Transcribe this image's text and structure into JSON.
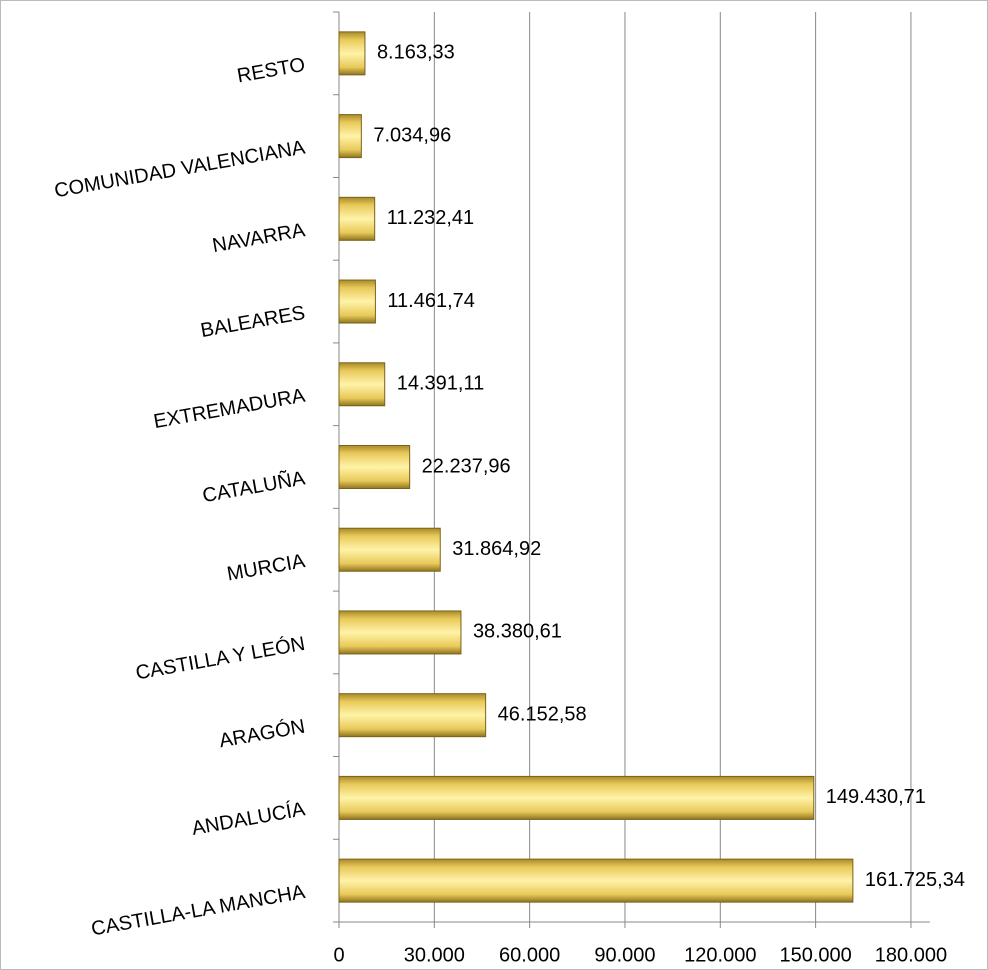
{
  "chart_data": {
    "type": "bar",
    "orientation": "horizontal",
    "categories": [
      "RESTO",
      "COMUNIDAD VALENCIANA",
      "NAVARRA",
      "BALEARES",
      "EXTREMADURA",
      "CATALUÑA",
      "MURCIA",
      "CASTILLA Y LEÓN",
      "ARAGÓN",
      "ANDALUCÍA",
      "CASTILLA-LA MANCHA"
    ],
    "values": [
      8163.33,
      7034.96,
      11232.41,
      11461.74,
      14391.11,
      22237.96,
      31864.92,
      38380.61,
      46152.58,
      149430.71,
      161725.34
    ],
    "value_labels": [
      "8.163,33",
      "7.034,96",
      "11.232,41",
      "11.461,74",
      "14.391,11",
      "22.237,96",
      "31.864,92",
      "38.380,61",
      "46.152,58",
      "149.430,71",
      "161.725,34"
    ],
    "color": "#f5dc6e",
    "xlim": [
      0,
      186000
    ],
    "xticks": [
      0,
      {
        "value": 30000,
        "label": "30.000"
      },
      {
        "value": 60000,
        "label": "60.000"
      },
      {
        "value": 90000,
        "label": "90.000"
      },
      {
        "value": 120000,
        "label": "120.000"
      },
      {
        "value": 150000,
        "label": "150.000"
      },
      {
        "value": 180000,
        "label": "180.000"
      }
    ],
    "grid": true
  }
}
